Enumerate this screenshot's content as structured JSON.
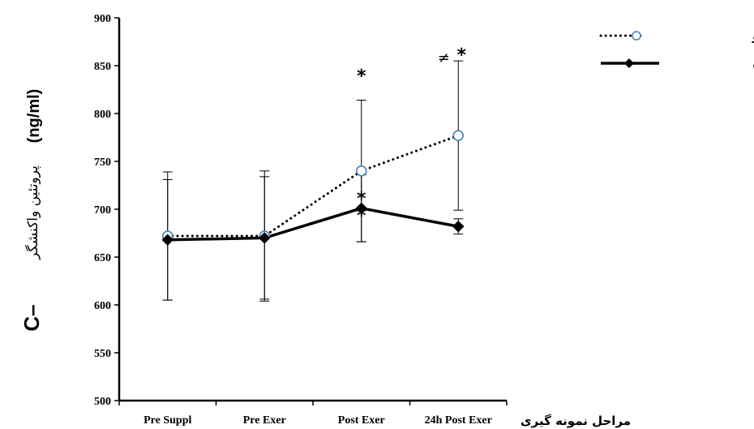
{
  "chart_data": {
    "type": "line",
    "categories": [
      "Pre Suppl",
      "Pre Exer",
      "Post Exer",
      "24h Post Exer"
    ],
    "series": [
      {
        "name": "گروه شبه دارو",
        "values": [
          672,
          672,
          740,
          777
        ],
        "error": [
          67,
          68,
          74,
          78
        ],
        "color": "#4a7ebb",
        "line_style": "dotted",
        "marker": "open-circle"
      },
      {
        "name": "گروه مکمل",
        "values": [
          668,
          670,
          701,
          682
        ],
        "error": [
          63,
          64,
          35,
          8
        ],
        "color": "#000000",
        "line_style": "solid",
        "marker": "filled-diamond"
      }
    ],
    "ylim": [
      500,
      900
    ],
    "yticks": [
      500,
      550,
      600,
      650,
      700,
      750,
      800,
      850,
      900
    ],
    "xlabel": "مراحل نمونه گیری",
    "ylabel": {
      "c": "C–",
      "text": "پروتئین واکنشگر",
      "unit": "(ng/ml)"
    },
    "grid": false,
    "legend_position": "top-right",
    "annotations": [
      {
        "category": "Post Exer",
        "y": 840,
        "text": "*"
      },
      {
        "category": "Post Exer",
        "y": 712,
        "text": "*"
      },
      {
        "category": "Post Exer",
        "y": 694,
        "text": "*"
      },
      {
        "category": "24h Post Exer",
        "y": 862,
        "text": "*"
      },
      {
        "category": "24h Post Exer",
        "y": 860,
        "text": "≠"
      }
    ]
  }
}
